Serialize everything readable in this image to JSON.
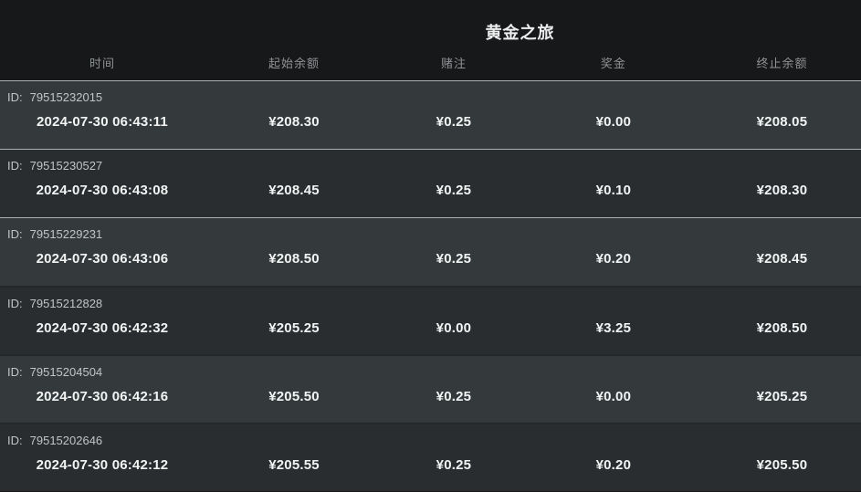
{
  "page": {
    "title": "黄金之旅"
  },
  "table": {
    "columns": [
      "时间",
      "起始余额",
      "赌注",
      "奖金",
      "终止余额"
    ],
    "id_label": "ID:",
    "rows": [
      {
        "id": "79515232015",
        "time": "2024-07-30 06:43:11",
        "start_balance": "¥208.30",
        "bet": "¥0.25",
        "prize": "¥0.00",
        "end_balance": "¥208.05"
      },
      {
        "id": "79515230527",
        "time": "2024-07-30 06:43:08",
        "start_balance": "¥208.45",
        "bet": "¥0.25",
        "prize": "¥0.10",
        "end_balance": "¥208.30"
      },
      {
        "id": "79515229231",
        "time": "2024-07-30 06:43:06",
        "start_balance": "¥208.50",
        "bet": "¥0.25",
        "prize": "¥0.20",
        "end_balance": "¥208.45"
      },
      {
        "id": "79515212828",
        "time": "2024-07-30 06:42:32",
        "start_balance": "¥205.25",
        "bet": "¥0.00",
        "prize": "¥3.25",
        "end_balance": "¥208.50"
      },
      {
        "id": "79515204504",
        "time": "2024-07-30 06:42:16",
        "start_balance": "¥205.50",
        "bet": "¥0.25",
        "prize": "¥0.00",
        "end_balance": "¥205.25"
      },
      {
        "id": "79515202646",
        "time": "2024-07-30 06:42:12",
        "start_balance": "¥205.55",
        "bet": "¥0.25",
        "prize": "¥0.20",
        "end_balance": "¥205.50"
      }
    ]
  },
  "colors": {
    "header_bg": "#17181a",
    "row_light": "#343a3c",
    "row_dark": "#292d2f",
    "sep_bright": "#aeb1b3",
    "sep_dark": "#25282a",
    "title_color": "#eceeee",
    "colhead_color": "#8f9294",
    "id_color": "#c2c5c6",
    "value_color": "#f2f4f4"
  }
}
